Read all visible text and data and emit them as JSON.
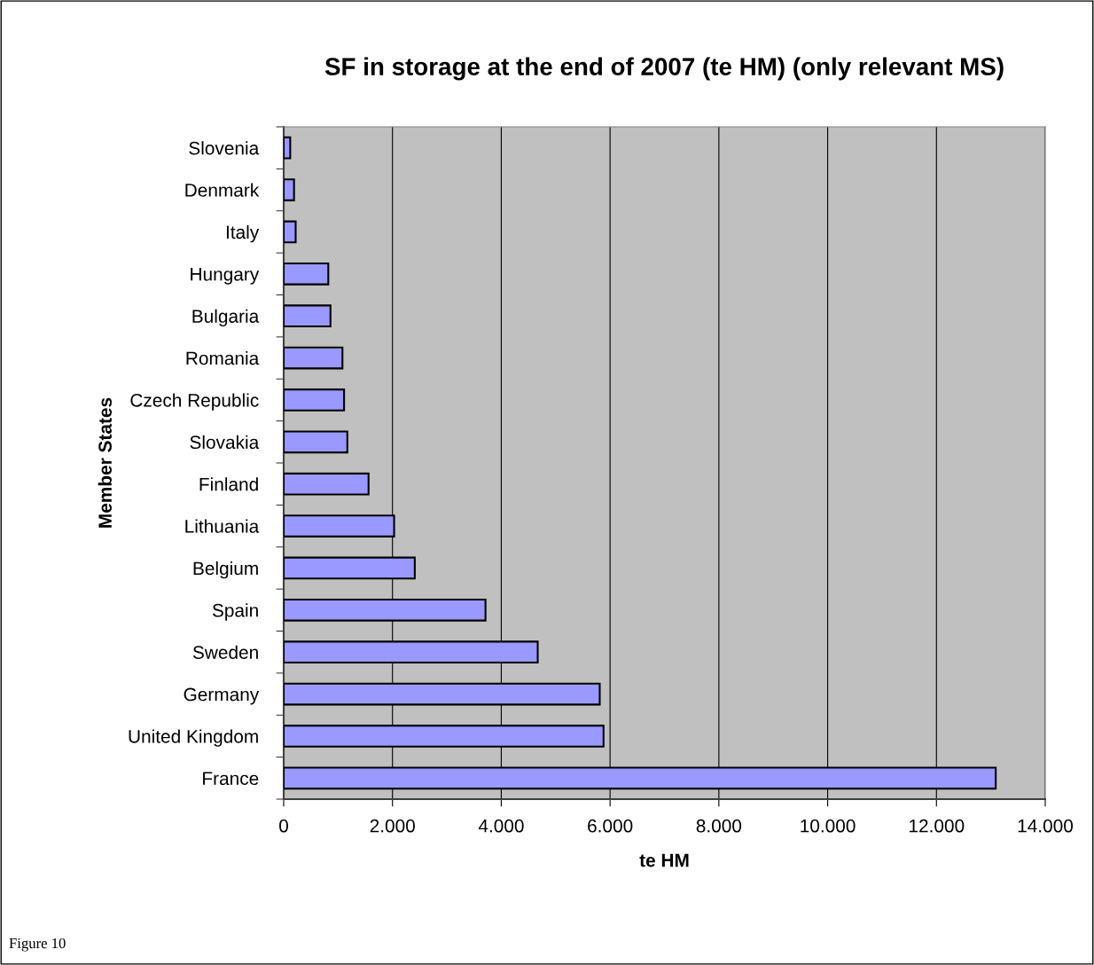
{
  "chart_data": {
    "type": "bar",
    "orientation": "horizontal",
    "title": "SF in storage at the end of 2007 (te HM) (only relevant MS)",
    "xlabel": "te HM",
    "ylabel": "Member States",
    "categories": [
      "Slovenia",
      "Denmark",
      "Italy",
      "Hungary",
      "Bulgaria",
      "Romania",
      "Czech Republic",
      "Slovakia",
      "Finland",
      "Lithuania",
      "Belgium",
      "Spain",
      "Sweden",
      "Germany",
      "United Kingdom",
      "France"
    ],
    "values": [
      120,
      190,
      220,
      820,
      860,
      1080,
      1110,
      1170,
      1560,
      2030,
      2410,
      3710,
      4670,
      5810,
      5880,
      13090
    ],
    "color": "#9999ff",
    "xlim": [
      0,
      14000
    ],
    "xticks": [
      0,
      {
        "value": 2000,
        "label": "2.000"
      },
      {
        "value": 4000,
        "label": "4.000"
      },
      {
        "value": 6000,
        "label": "6.000"
      },
      {
        "value": 8000,
        "label": "8.000"
      },
      {
        "value": 10000,
        "label": "10.000"
      },
      {
        "value": 12000,
        "label": "12.000"
      },
      {
        "value": 14000,
        "label": "14.000"
      }
    ],
    "grid": "x",
    "legend": false,
    "annotations": [
      "Figure 10"
    ]
  }
}
